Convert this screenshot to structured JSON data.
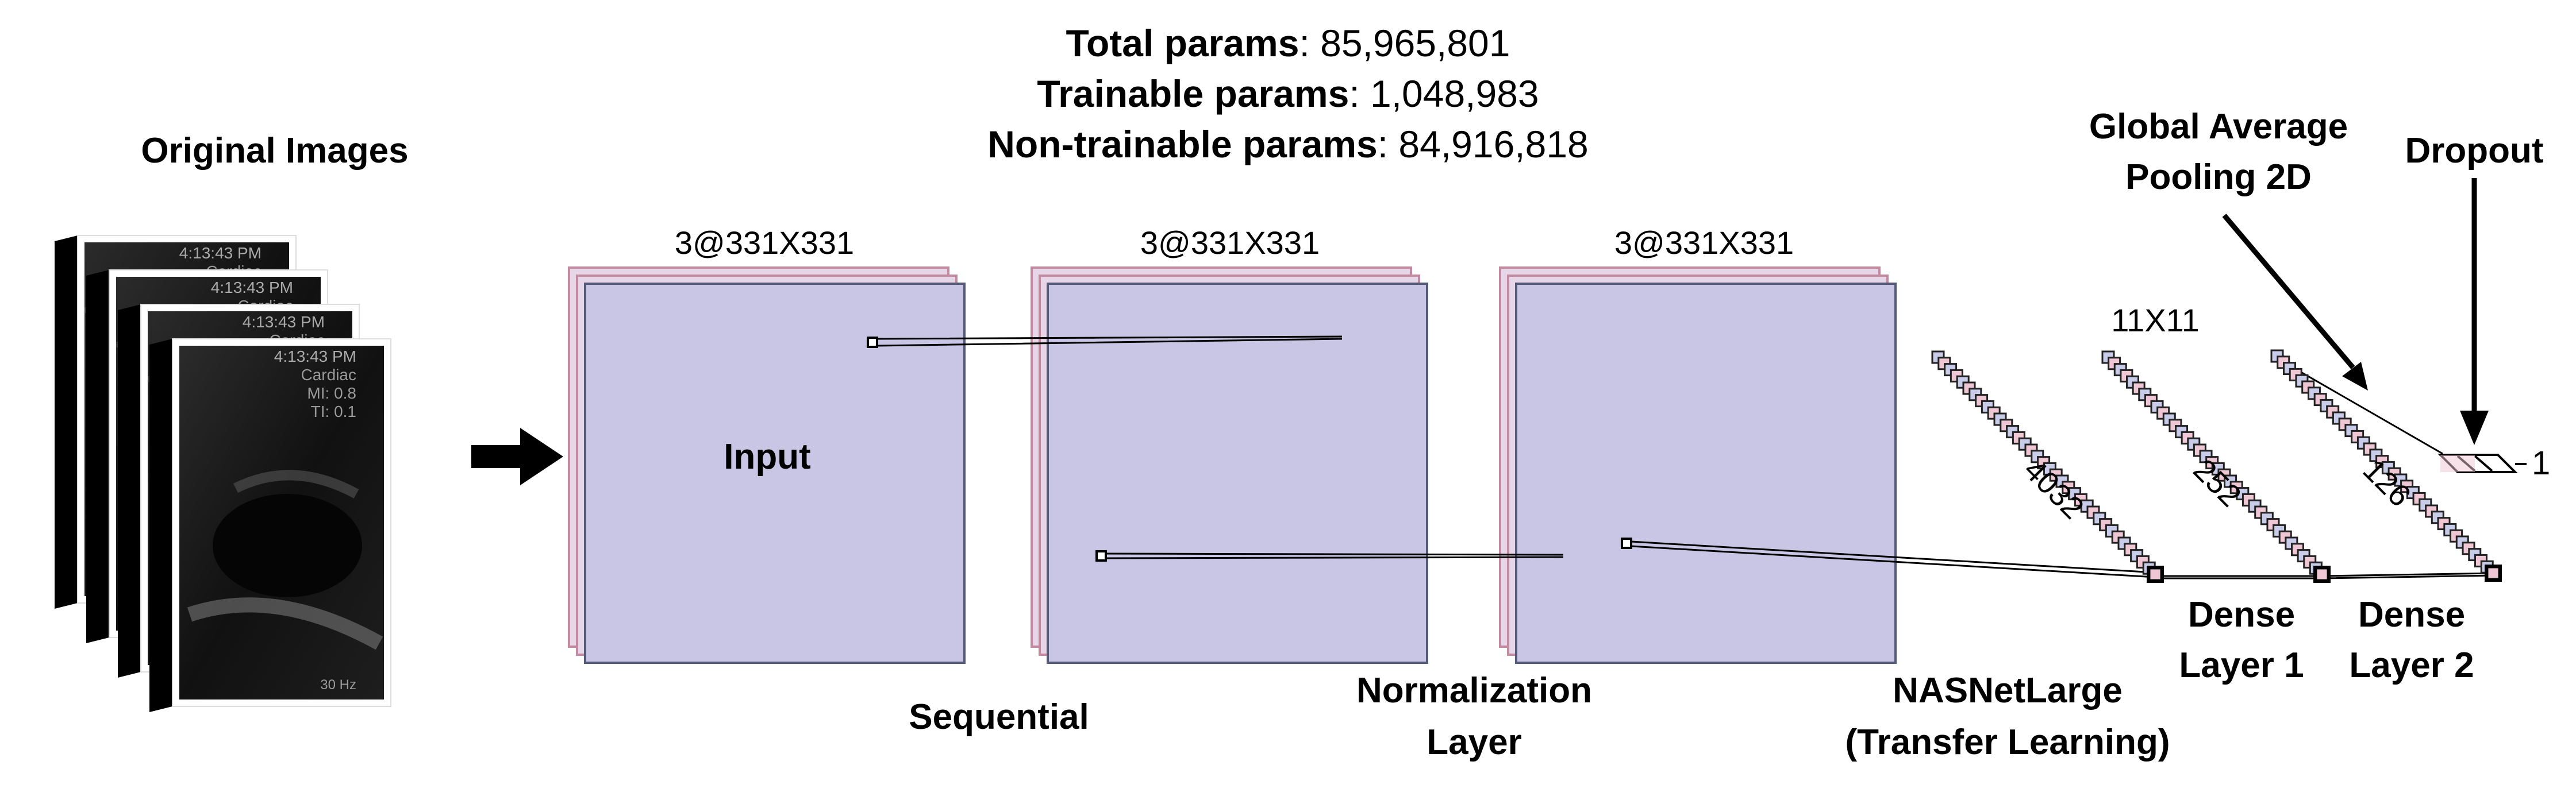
{
  "params": {
    "total_label": "Total params",
    "total_value": ": 85,965,801",
    "trainable_label": "Trainable params",
    "trainable_value": ": 1,048,983",
    "nontrainable_label": "Non-trainable params",
    "nontrainable_value": ": 84,916,818"
  },
  "original_images": {
    "title": "Original Images",
    "overlay_time": "4:13:43 PM",
    "overlay_mode": "Cardiac",
    "overlay_mi": "MI: 0.8",
    "overlay_ti": "TI: 0.1",
    "overlay_corner": "30 Hz"
  },
  "feature_maps": {
    "dims": [
      "3@331X331",
      "3@331X331",
      "3@331X331"
    ],
    "input_label": "Input"
  },
  "layers": {
    "sequential": "Sequential",
    "normalization_line1": "Normalization",
    "normalization_line2": "Layer",
    "nasnet_line1": "NASNetLarge",
    "nasnet_line2": "(Transfer Learning)",
    "dense1_line1": "Dense",
    "dense1_line2": "Layer 1",
    "dense2_line1": "Dense",
    "dense2_line2": "Layer 2",
    "gap_line1": "Global Average",
    "gap_line2": "Pooling 2D",
    "dropout": "Dropout"
  },
  "vectors": {
    "size_4032": "4032",
    "size_252": "252",
    "size_126": "126",
    "kernel": "11X11",
    "output": "1"
  },
  "colors": {
    "map_fill": "#c8c6e4",
    "map_back": "#e6d6e8",
    "map_edge": "#555a78",
    "map_back_edge": "#c48aa0",
    "neuron_fill": "#c9cce9",
    "neuron_alt": "#efc6d4"
  }
}
